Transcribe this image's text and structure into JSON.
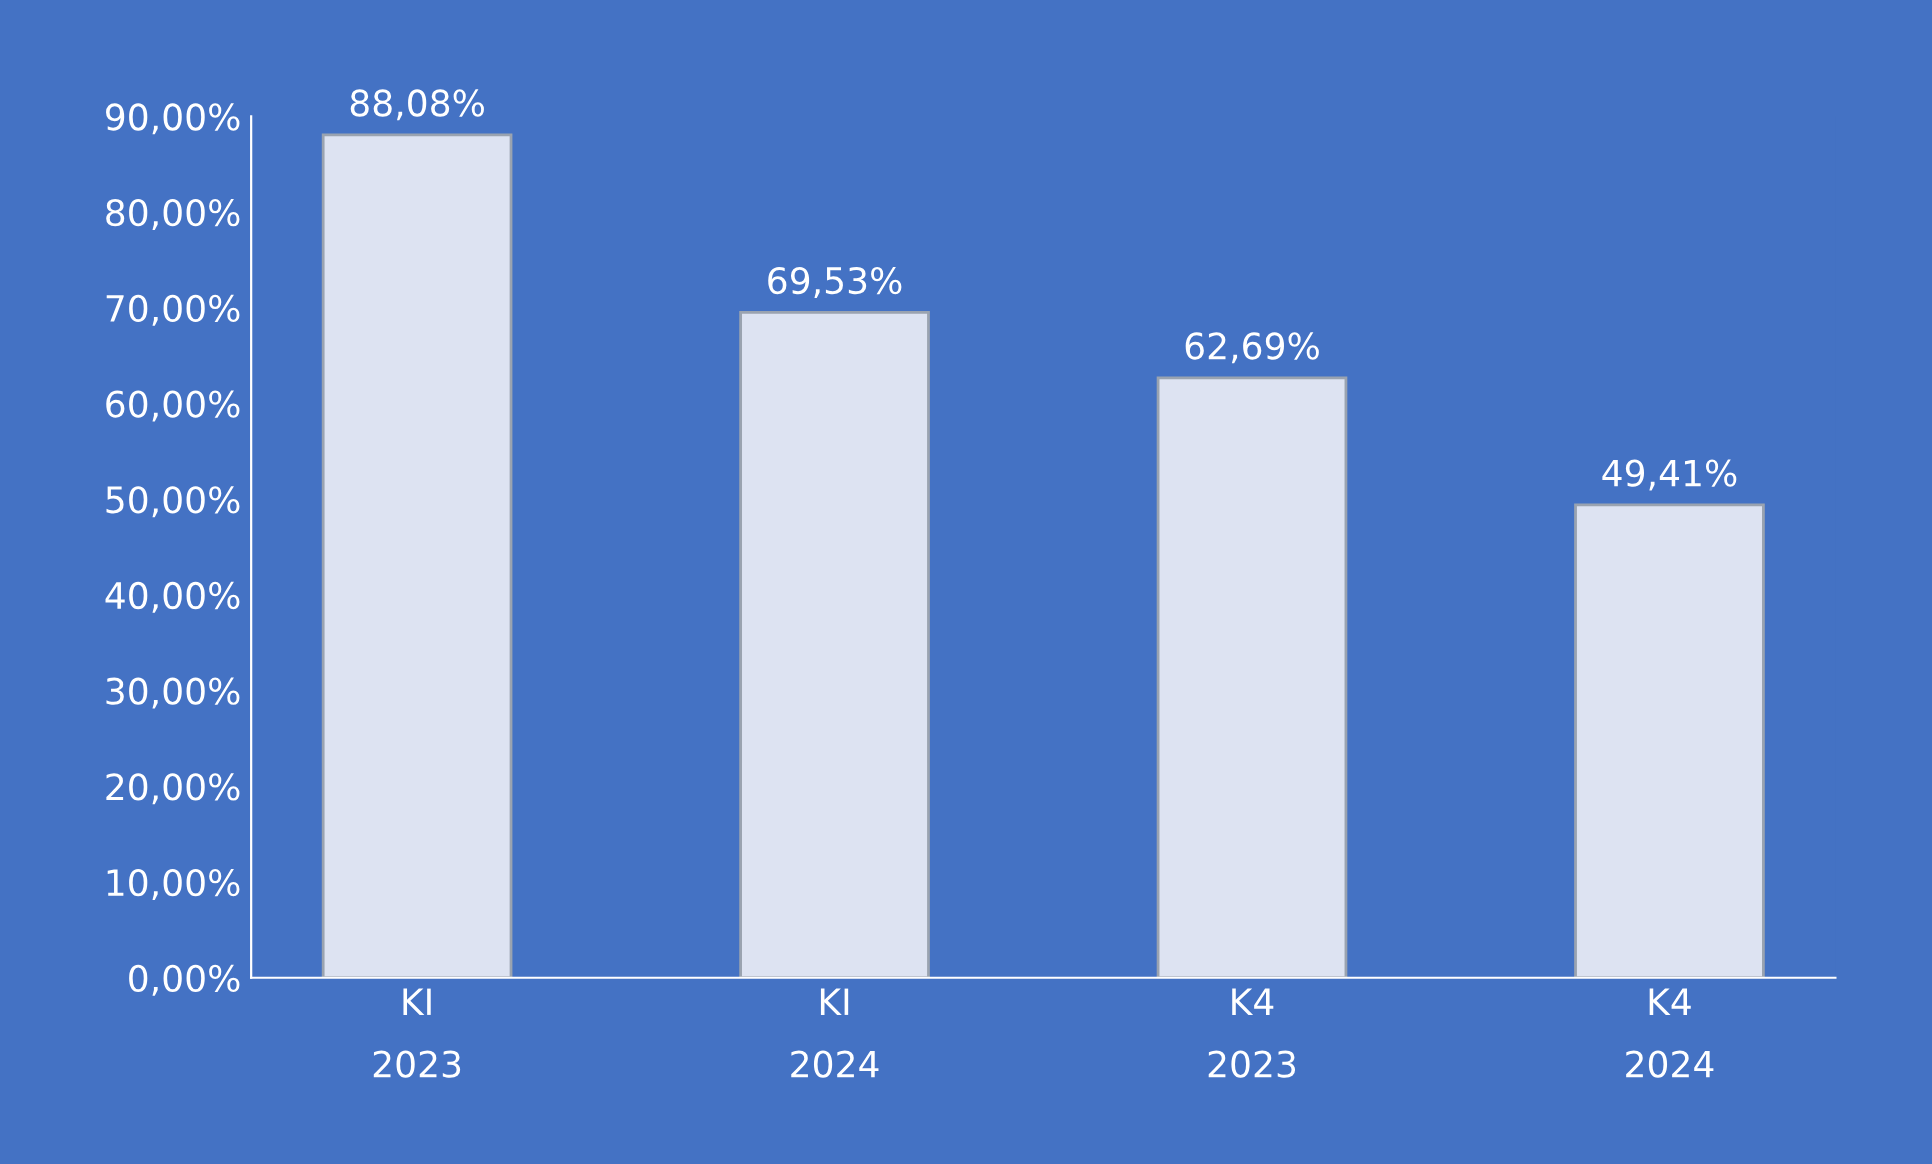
{
  "chart_data": {
    "type": "bar",
    "categories": [
      "KI\n2023",
      "KI\n2024",
      "K4\n2023",
      "K4\n2024"
    ],
    "values": [
      88.08,
      69.53,
      62.69,
      49.41
    ],
    "value_labels": [
      "88,08%",
      "69,53%",
      "62,69%",
      "49,41%"
    ],
    "color": "#dde3f2",
    "ylim": [
      0,
      90
    ],
    "yticks": [
      {
        "value": 0,
        "label": "0,00%"
      },
      {
        "value": 10,
        "label": "10,00%"
      },
      {
        "value": 20,
        "label": "20,00%"
      },
      {
        "value": 30,
        "label": "30,00%"
      },
      {
        "value": 40,
        "label": "40,00%"
      },
      {
        "value": 50,
        "label": "50,00%"
      },
      {
        "value": 60,
        "label": "60,00%"
      },
      {
        "value": 70,
        "label": "70,00%"
      },
      {
        "value": 80,
        "label": "80,00%"
      },
      {
        "value": 90,
        "label": "90,00%"
      }
    ],
    "grid": false,
    "legend": false
  }
}
